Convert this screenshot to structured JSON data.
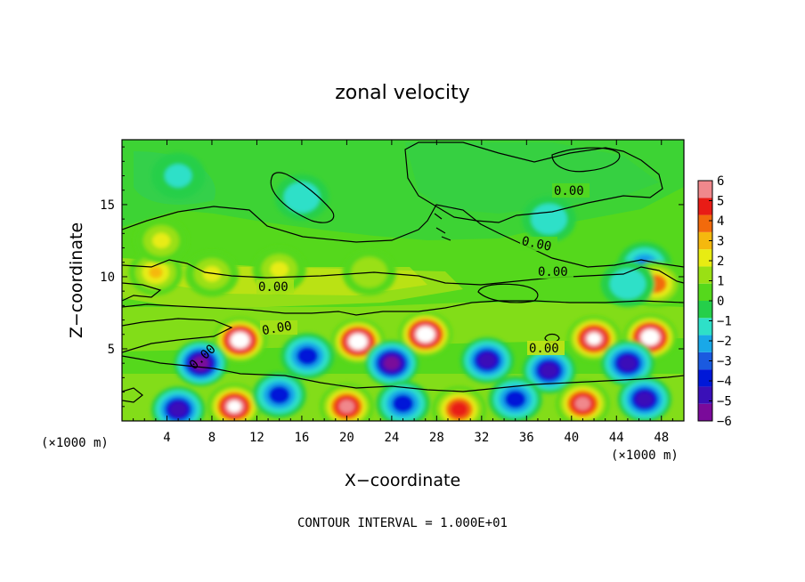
{
  "chart_data": {
    "type": "heatmap",
    "title": "zonal velocity",
    "xlabel": "X−coordinate",
    "ylabel": "Z−coordinate",
    "x_unit_label_left": "(×1000 m)",
    "x_unit_label_right": "(×1000 m)",
    "xlim": [
      0,
      50
    ],
    "ylim": [
      0,
      19.5
    ],
    "x_ticks": [
      4,
      8,
      12,
      16,
      20,
      24,
      28,
      32,
      36,
      40,
      44,
      48
    ],
    "y_ticks": [
      5,
      10,
      15
    ],
    "colorbar": {
      "min": -6,
      "max": 6,
      "ticks": [
        6,
        5,
        4,
        3,
        2,
        1,
        0,
        -1,
        -2,
        -3,
        -4,
        -5,
        -6
      ],
      "tick_labels": [
        "6",
        "5",
        "4",
        "3",
        "2",
        "1",
        "0",
        "−1",
        "−2",
        "−3",
        "−4",
        "−5",
        "−6"
      ],
      "colors": [
        "#7a0a9a",
        "#3a10b8",
        "#0018d8",
        "#1a5ae0",
        "#19a8e8",
        "#2ee0c8",
        "#25cf4a",
        "#55d81c",
        "#9ae014",
        "#e8ec12",
        "#f5b80e",
        "#f26a0c",
        "#e81c16",
        "#f0888c"
      ]
    },
    "contour_labels": [
      "0.00",
      "0.00",
      "0.00",
      "0.00",
      "0.00",
      "0.00"
    ],
    "contour_interval": "CONTOUR INTERVAL = 1.000E+01",
    "field_features": [
      {
        "x": 10.5,
        "z": 5.6,
        "value": 7.5
      },
      {
        "x": 21.0,
        "z": 5.5,
        "value": 7.5
      },
      {
        "x": 27.0,
        "z": 6.0,
        "value": 7.5
      },
      {
        "x": 42.0,
        "z": 5.7,
        "value": 7.0
      },
      {
        "x": 47.0,
        "z": 5.8,
        "value": 7.5
      },
      {
        "x": 7.0,
        "z": 4.0,
        "value": -5.5
      },
      {
        "x": 16.5,
        "z": 4.5,
        "value": -4.0
      },
      {
        "x": 24.0,
        "z": 4.0,
        "value": -5.5
      },
      {
        "x": 32.5,
        "z": 4.2,
        "value": -5.0
      },
      {
        "x": 38.0,
        "z": 3.5,
        "value": -4.5
      },
      {
        "x": 45.0,
        "z": 4.0,
        "value": -5.0
      },
      {
        "x": 10.0,
        "z": 1.0,
        "value": 6.5
      },
      {
        "x": 20.0,
        "z": 1.0,
        "value": 6.0
      },
      {
        "x": 30.0,
        "z": 0.8,
        "value": 5.0
      },
      {
        "x": 41.0,
        "z": 1.2,
        "value": 6.0
      },
      {
        "x": 5.0,
        "z": 0.8,
        "value": -4.5
      },
      {
        "x": 14.0,
        "z": 1.8,
        "value": -3.5
      },
      {
        "x": 25.0,
        "z": 1.2,
        "value": -4.0
      },
      {
        "x": 35.0,
        "z": 1.5,
        "value": -4.0
      },
      {
        "x": 46.5,
        "z": 1.5,
        "value": -4.5
      },
      {
        "x": 3.0,
        "z": 10.3,
        "value": 3.0
      },
      {
        "x": 8.0,
        "z": 10.2,
        "value": 2.0
      },
      {
        "x": 14.0,
        "z": 10.5,
        "value": 2.0
      },
      {
        "x": 22.0,
        "z": 10.3,
        "value": 1.5
      },
      {
        "x": 3.5,
        "z": 12.5,
        "value": 2.0
      },
      {
        "x": 46.5,
        "z": 10.8,
        "value": -3.0
      },
      {
        "x": 47.5,
        "z": 9.5,
        "value": 3.5
      },
      {
        "x": 16.0,
        "z": 15.5,
        "value": -1.5
      },
      {
        "x": 38.0,
        "z": 14.0,
        "value": -1.5
      },
      {
        "x": 5.0,
        "z": 17.0,
        "value": -1.0
      },
      {
        "x": 45.0,
        "z": 9.5,
        "value": -1.5
      }
    ]
  }
}
